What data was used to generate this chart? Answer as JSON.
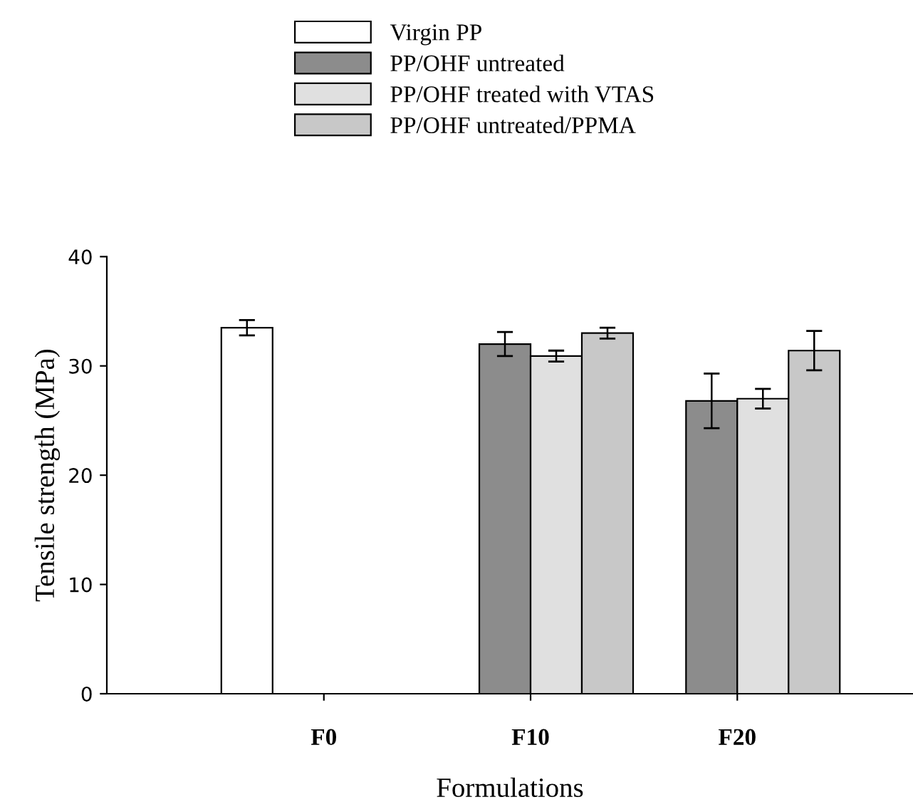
{
  "chart_data": {
    "type": "bar",
    "xlabel": "Formulations",
    "ylabel": "Tensile strength (MPa)",
    "categories": [
      "F0",
      "F10",
      "F20"
    ],
    "series": [
      {
        "name": "Virgin PP",
        "color": "#ffffff",
        "values": [
          33.5,
          null,
          null
        ],
        "errors": [
          0.7,
          null,
          null
        ]
      },
      {
        "name": "PP/OHF untreated",
        "color": "#8c8c8c",
        "values": [
          null,
          32.0,
          26.8
        ],
        "errors": [
          null,
          1.1,
          2.5
        ]
      },
      {
        "name": "PP/OHF treated with VTAS",
        "color": "#e0e0e0",
        "values": [
          null,
          30.9,
          27.0
        ],
        "errors": [
          null,
          0.5,
          0.9
        ]
      },
      {
        "name": "PP/OHF untreated/PPMA",
        "color": "#c8c8c8",
        "values": [
          null,
          33.0,
          31.4
        ],
        "errors": [
          null,
          0.5,
          1.8
        ]
      }
    ],
    "ylim": [
      0,
      40
    ],
    "yticks": [
      0,
      10,
      20,
      30,
      40
    ],
    "grid": false,
    "legend": "top"
  }
}
